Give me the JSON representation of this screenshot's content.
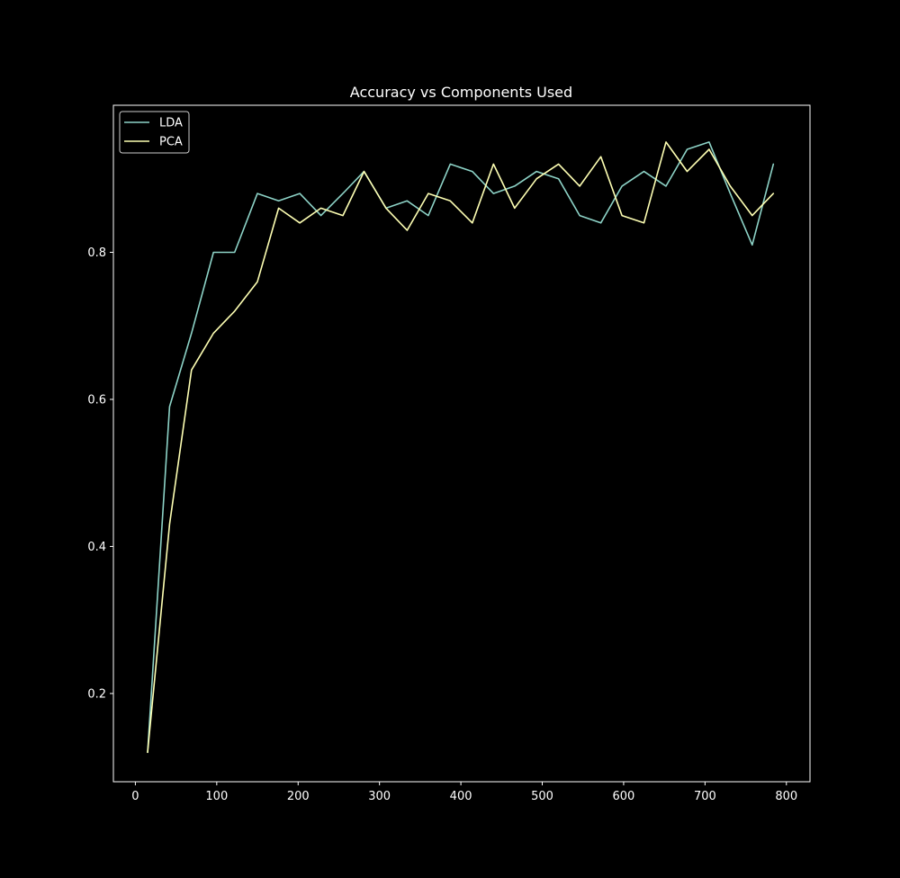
{
  "chart_data": {
    "type": "line",
    "title": "Accuracy vs Components Used",
    "xlabel": "",
    "ylabel": "",
    "xlim": [
      -27,
      829
    ],
    "ylim": [
      0.08,
      1.0
    ],
    "xticks": [
      0,
      100,
      200,
      300,
      400,
      500,
      600,
      700,
      800
    ],
    "yticks": [
      0.2,
      0.4,
      0.6,
      0.8
    ],
    "x": [
      15,
      42,
      69,
      96,
      122,
      150,
      176,
      202,
      228,
      255,
      281,
      308,
      334,
      360,
      387,
      414,
      440,
      466,
      493,
      520,
      546,
      572,
      598,
      625,
      652,
      678,
      705,
      731,
      758,
      784
    ],
    "series": [
      {
        "name": "LDA",
        "color": "#8dd3c7",
        "values": [
          0.12,
          0.59,
          0.69,
          0.8,
          0.8,
          0.88,
          0.87,
          0.88,
          0.85,
          0.88,
          0.91,
          0.86,
          0.87,
          0.85,
          0.92,
          0.91,
          0.88,
          0.89,
          0.91,
          0.9,
          0.85,
          0.84,
          0.89,
          0.91,
          0.89,
          0.94,
          0.95,
          0.88,
          0.81,
          0.92
        ]
      },
      {
        "name": "PCA",
        "color": "#feffb3",
        "values": [
          0.12,
          0.43,
          0.64,
          0.69,
          0.72,
          0.76,
          0.86,
          0.84,
          0.86,
          0.85,
          0.91,
          0.86,
          0.83,
          0.88,
          0.87,
          0.84,
          0.92,
          0.86,
          0.9,
          0.92,
          0.89,
          0.93,
          0.85,
          0.84,
          0.95,
          0.91,
          0.94,
          0.89,
          0.85,
          0.88
        ]
      }
    ],
    "legend_position": "top-left",
    "grid": false
  }
}
